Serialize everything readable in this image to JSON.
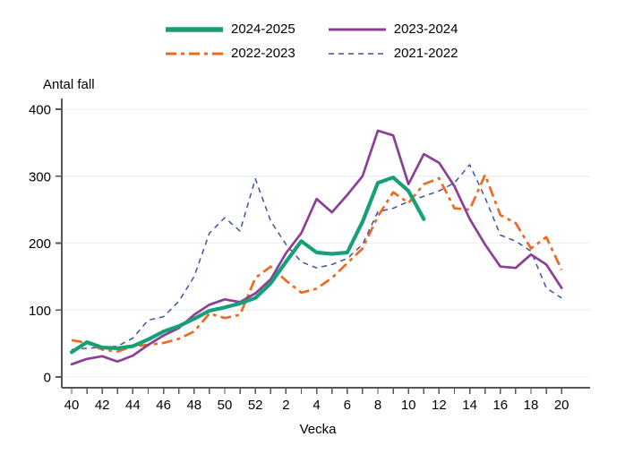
{
  "page": {
    "background": "#ffffff",
    "text_color": "#000000"
  },
  "axis": {
    "line_color": "#565656",
    "grid_color": "#e9f0f6",
    "tick_label_color": "#000000"
  },
  "chart_data": {
    "type": "line",
    "title": "",
    "xlabel": "Vecka",
    "ylabel": "Antal fall",
    "x_categories": [
      "40",
      "41",
      "42",
      "43",
      "44",
      "45",
      "46",
      "47",
      "48",
      "49",
      "50",
      "51",
      "52",
      "1",
      "2",
      "3",
      "4",
      "5",
      "6",
      "7",
      "8",
      "9",
      "10",
      "11",
      "12",
      "13",
      "14",
      "15",
      "16",
      "17",
      "18",
      "19",
      "20"
    ],
    "x_label_every": 2,
    "ylim": [
      0,
      400
    ],
    "yticks": [
      0,
      100,
      200,
      300,
      400
    ],
    "grid": true,
    "legend_position": "top",
    "series": [
      {
        "name": "2024-2025",
        "color": "#17a077",
        "style": "solid",
        "width": 4.2,
        "values": [
          37,
          52,
          44,
          43,
          46,
          56,
          68,
          76,
          87,
          99,
          104,
          110,
          118,
          140,
          172,
          203,
          186,
          184,
          186,
          232,
          290,
          298,
          278,
          236,
          null,
          null,
          null,
          null,
          null,
          null,
          null,
          null,
          null
        ]
      },
      {
        "name": "2023-2024",
        "color": "#8b4096",
        "style": "solid",
        "width": 2.7,
        "values": [
          19,
          27,
          31,
          23,
          32,
          48,
          62,
          73,
          93,
          108,
          116,
          112,
          125,
          146,
          185,
          215,
          266,
          246,
          272,
          300,
          368,
          361,
          288,
          333,
          320,
          285,
          236,
          198,
          165,
          163,
          183,
          168,
          133
        ]
      },
      {
        "name": "2022-2023",
        "color": "#ed6a21",
        "style": "dash-dot",
        "width": 2.7,
        "values": [
          55,
          51,
          41,
          38,
          46,
          48,
          51,
          57,
          68,
          95,
          88,
          93,
          148,
          165,
          144,
          126,
          132,
          148,
          170,
          192,
          240,
          276,
          260,
          288,
          297,
          252,
          250,
          302,
          242,
          230,
          192,
          209,
          160
        ]
      },
      {
        "name": "2021-2022",
        "color": "#3d52a8",
        "style": "dashed",
        "width": 1.5,
        "values": [
          41,
          43,
          44,
          46,
          58,
          85,
          90,
          113,
          150,
          215,
          238,
          218,
          296,
          233,
          198,
          172,
          163,
          168,
          177,
          198,
          247,
          252,
          262,
          270,
          278,
          290,
          317,
          268,
          212,
          203,
          188,
          133,
          118
        ]
      }
    ],
    "legend_order": [
      "2024-2025",
      "2023-2024",
      "2022-2023",
      "2021-2022"
    ]
  }
}
